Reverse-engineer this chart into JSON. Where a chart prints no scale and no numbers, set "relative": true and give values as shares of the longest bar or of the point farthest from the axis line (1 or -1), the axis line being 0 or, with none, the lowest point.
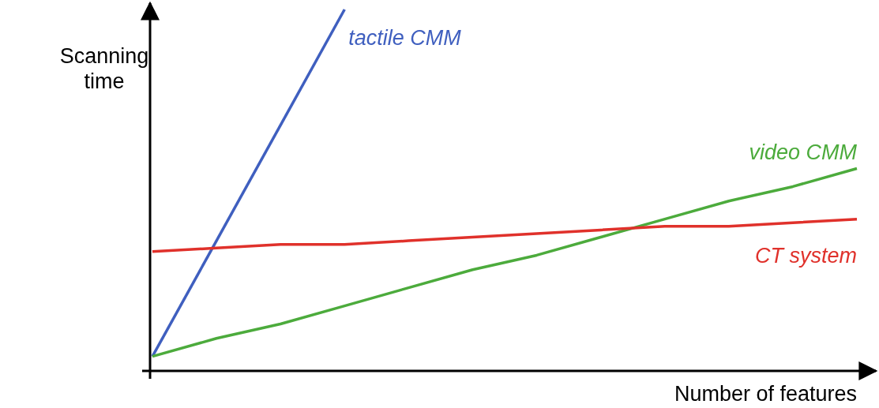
{
  "chart_data": {
    "type": "line",
    "relative": true,
    "xlabel": "Number of features",
    "ylabel": "Scanning time",
    "legend": false,
    "marker": "none",
    "line_style": "solid",
    "categories": [
      null,
      null,
      null,
      null,
      null,
      null,
      null,
      null,
      null,
      null,
      null,
      null
    ],
    "series": [
      {
        "name": "tactile CMM",
        "color": "#3f5fbf",
        "values": [
          0.04,
          0.36,
          0.68,
          1,
          null,
          null,
          null,
          null,
          null,
          null,
          null,
          null
        ]
      },
      {
        "name": "video CMM",
        "color": "#4cab3c",
        "values": [
          0.04,
          0.09,
          0.13,
          0.18,
          0.23,
          0.28,
          0.32,
          0.37,
          0.42,
          0.47,
          0.51,
          0.56
        ]
      },
      {
        "name": "CT system",
        "color": "#e0312b",
        "values": [
          0.33,
          0.34,
          0.35,
          0.35,
          0.36,
          0.37,
          0.38,
          0.39,
          0.4,
          0.4,
          0.41,
          0.42
        ]
      }
    ]
  }
}
